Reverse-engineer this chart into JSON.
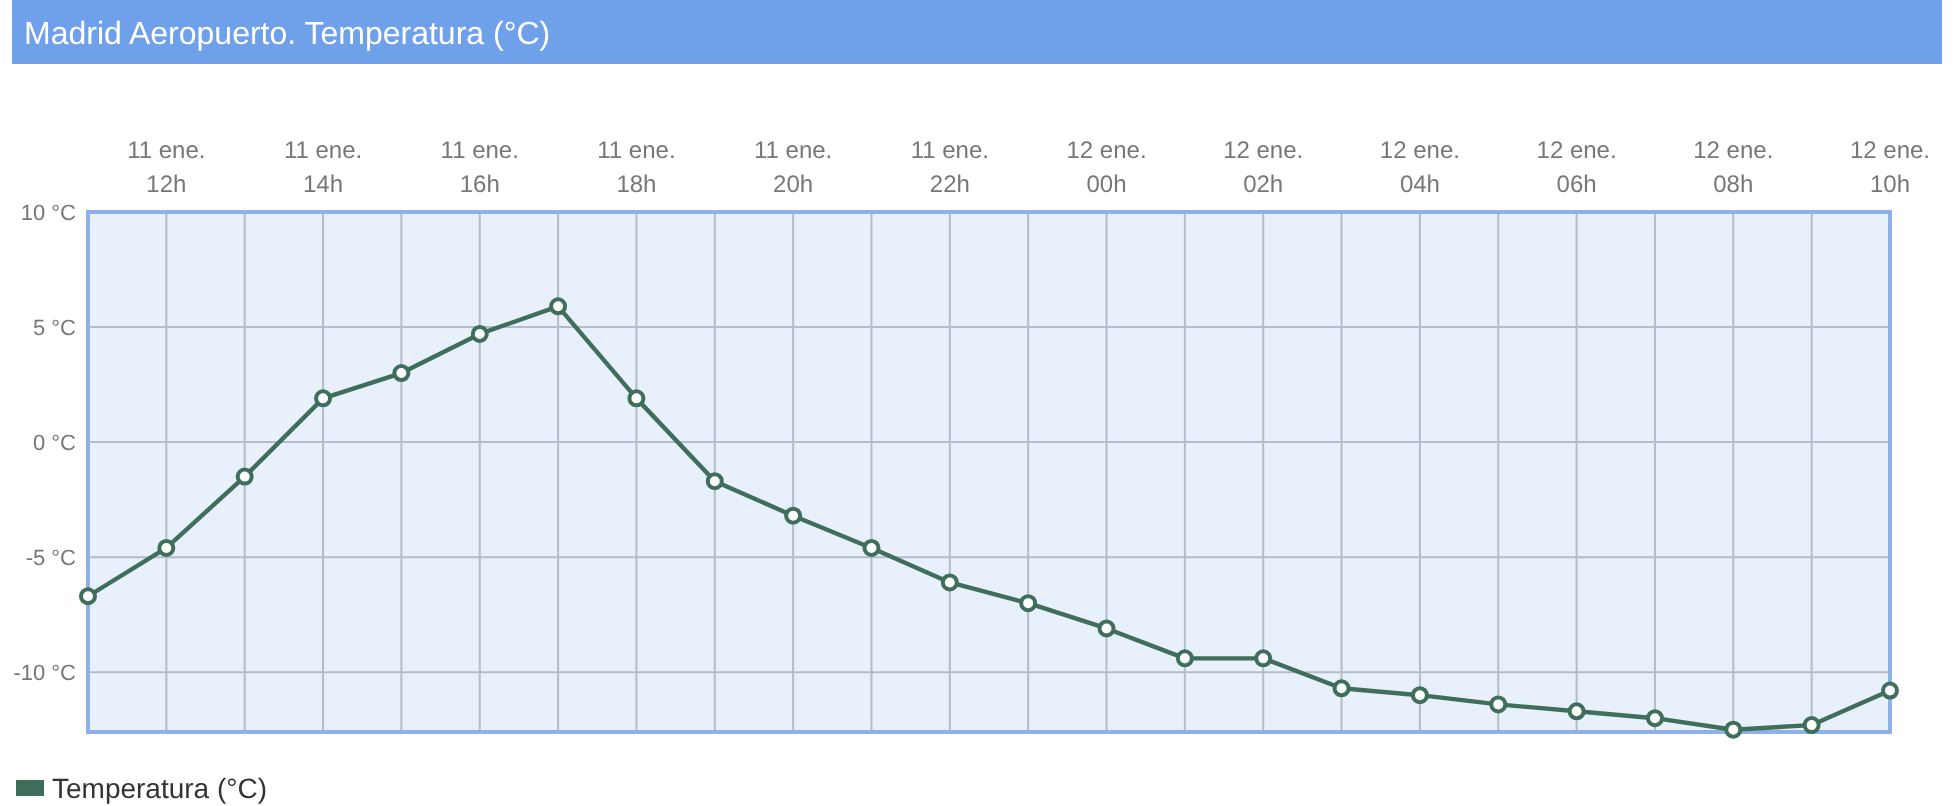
{
  "chart_data": {
    "type": "line",
    "title": "Madrid Aeropuerto. Temperatura (°C)",
    "categories": [
      null,
      "11 ene. 12h",
      null,
      "11 ene. 14h",
      null,
      "11 ene. 16h",
      null,
      "11 ene. 18h",
      null,
      "11 ene. 20h",
      null,
      "11 ene. 22h",
      null,
      "12 ene. 00h",
      null,
      "12 ene. 02h",
      null,
      "12 ene. 04h",
      null,
      "12 ene. 06h",
      null,
      "12 ene. 08h",
      null,
      "12 ene. 10h"
    ],
    "series": [
      {
        "name": "Temperatura (°C)",
        "color": "#3f6e5a",
        "values": [
          -6.7,
          -4.6,
          -1.5,
          1.9,
          3.0,
          4.7,
          5.9,
          1.9,
          -1.7,
          -3.2,
          -4.6,
          -6.1,
          -7.0,
          -8.1,
          -9.4,
          -9.4,
          -10.7,
          -11.0,
          -11.4,
          -11.7,
          -12.0,
          -12.5,
          -12.3,
          -10.8
        ]
      }
    ],
    "ylim": [
      -12.6,
      10
    ],
    "yticks": [
      {
        "value": 10,
        "label": "10 °C"
      },
      {
        "value": 5,
        "label": "5 °C"
      },
      {
        "value": 0,
        "label": "0 °C"
      },
      {
        "value": -5,
        "label": "-5 °C"
      },
      {
        "value": -10,
        "label": "-10 °C"
      }
    ],
    "grid": true,
    "legend": "bottom left",
    "marker": "circle",
    "line_style": "solid"
  }
}
